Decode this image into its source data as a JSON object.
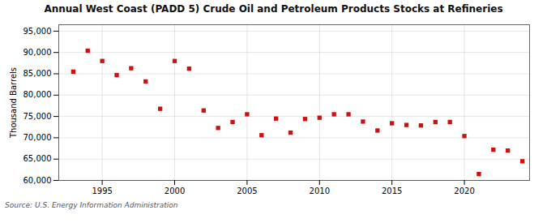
{
  "chart_data": {
    "type": "scatter",
    "title": "Annual West Coast (PADD 5) Crude Oil and Petroleum Products Stocks at Refineries",
    "ylabel": "Thousand Barrels",
    "annotations": [
      "Source: U.S. Energy Information Administration"
    ],
    "x": [
      1993,
      1994,
      1995,
      1996,
      1997,
      1998,
      1999,
      2000,
      2001,
      2002,
      2003,
      2004,
      2005,
      2006,
      2007,
      2008,
      2009,
      2010,
      2011,
      2012,
      2013,
      2014,
      2015,
      2016,
      2017,
      2018,
      2019,
      2020,
      2021,
      2022,
      2023,
      2024
    ],
    "values": [
      85500,
      90400,
      88000,
      84700,
      86300,
      83200,
      76800,
      88000,
      86200,
      76400,
      72300,
      73700,
      75500,
      70600,
      74500,
      71200,
      74400,
      74700,
      75500,
      75500,
      73800,
      71700,
      73400,
      73000,
      72900,
      73700,
      73700,
      70400,
      61500,
      67200,
      67000,
      64500
    ],
    "color": "#cc1111",
    "marker": "square",
    "xlim": [
      1992.0,
      2024.5
    ],
    "ylim": [
      60000,
      96500
    ],
    "xticks": [
      1995,
      2000,
      2005,
      2010,
      2015,
      2020
    ],
    "yticks": [
      {
        "value": 60000,
        "label": "60,000"
      },
      {
        "value": 65000,
        "label": "65,000"
      },
      {
        "value": 70000,
        "label": "70,000"
      },
      {
        "value": 75000,
        "label": "75,000"
      },
      {
        "value": 80000,
        "label": "80,000"
      },
      {
        "value": 85000,
        "label": "85,000"
      },
      {
        "value": 90000,
        "label": "90,000"
      },
      {
        "value": 95000,
        "label": "95,000"
      }
    ],
    "grid": true
  }
}
